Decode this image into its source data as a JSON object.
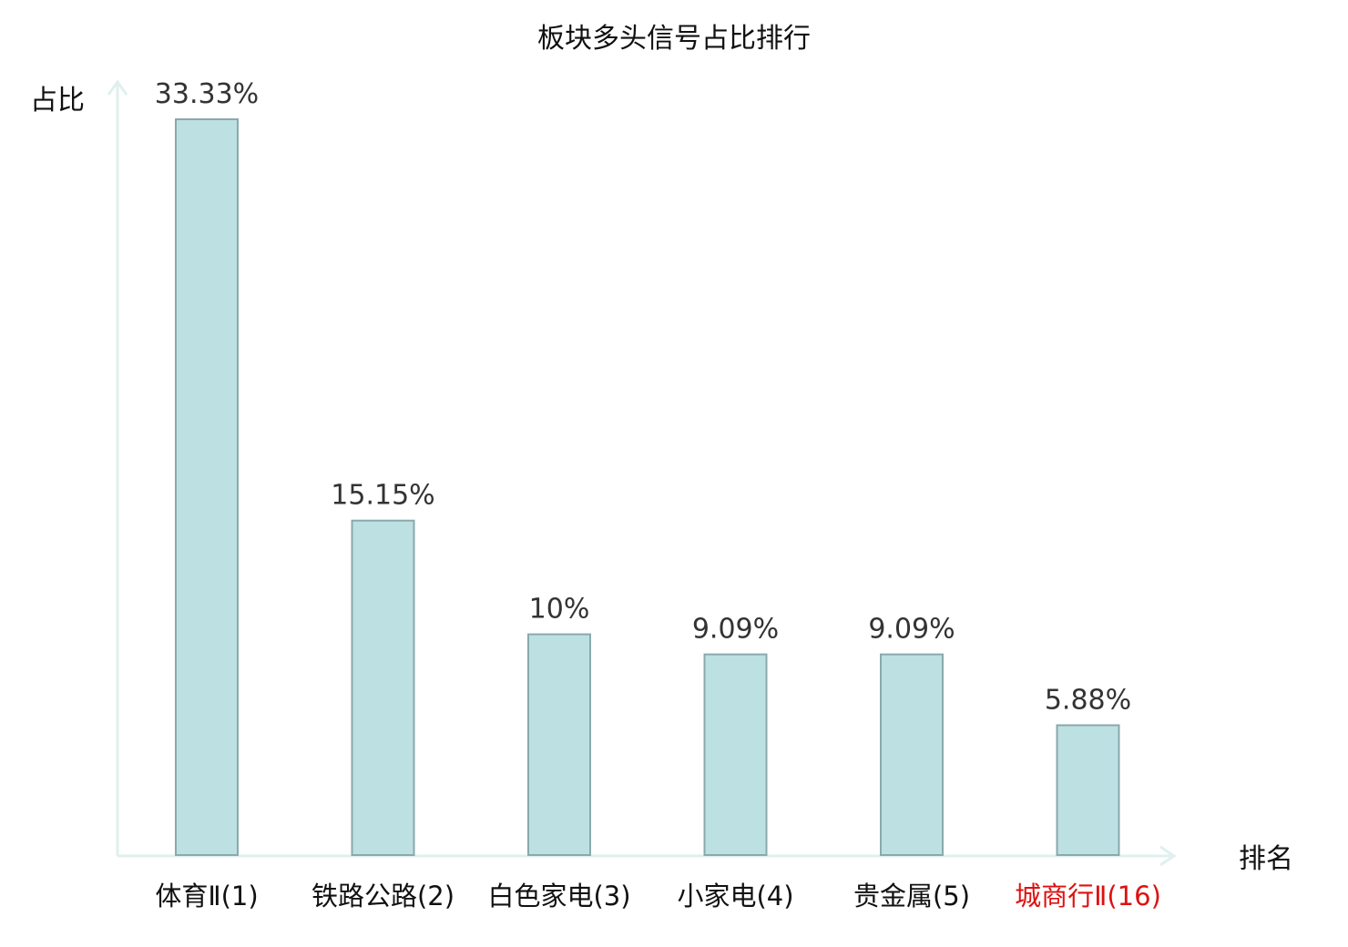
{
  "chart_data": {
    "type": "bar",
    "title": "板块多头信号占比排行",
    "ylabel": "占比",
    "xlabel": "排名",
    "categories": [
      "体育Ⅱ(1)",
      "铁路公路(2)",
      "白色家电(3)",
      "小家电(4)",
      "贵金属(5)",
      "城商行Ⅱ(16)"
    ],
    "values": [
      33.33,
      15.15,
      10,
      9.09,
      9.09,
      5.88
    ],
    "value_labels": [
      "33.33%",
      "15.15%",
      "10%",
      "9.09%",
      "9.09%",
      "5.88%"
    ],
    "highlight_category_index": 5,
    "ylim": [
      0,
      35
    ],
    "grid": false,
    "colors": {
      "bar_fill": "#bde0e3",
      "bar_stroke": "#8aa9ab",
      "axis": "#dff0ee",
      "category_text": "#111111",
      "highlight_text": "#dd1111"
    }
  }
}
